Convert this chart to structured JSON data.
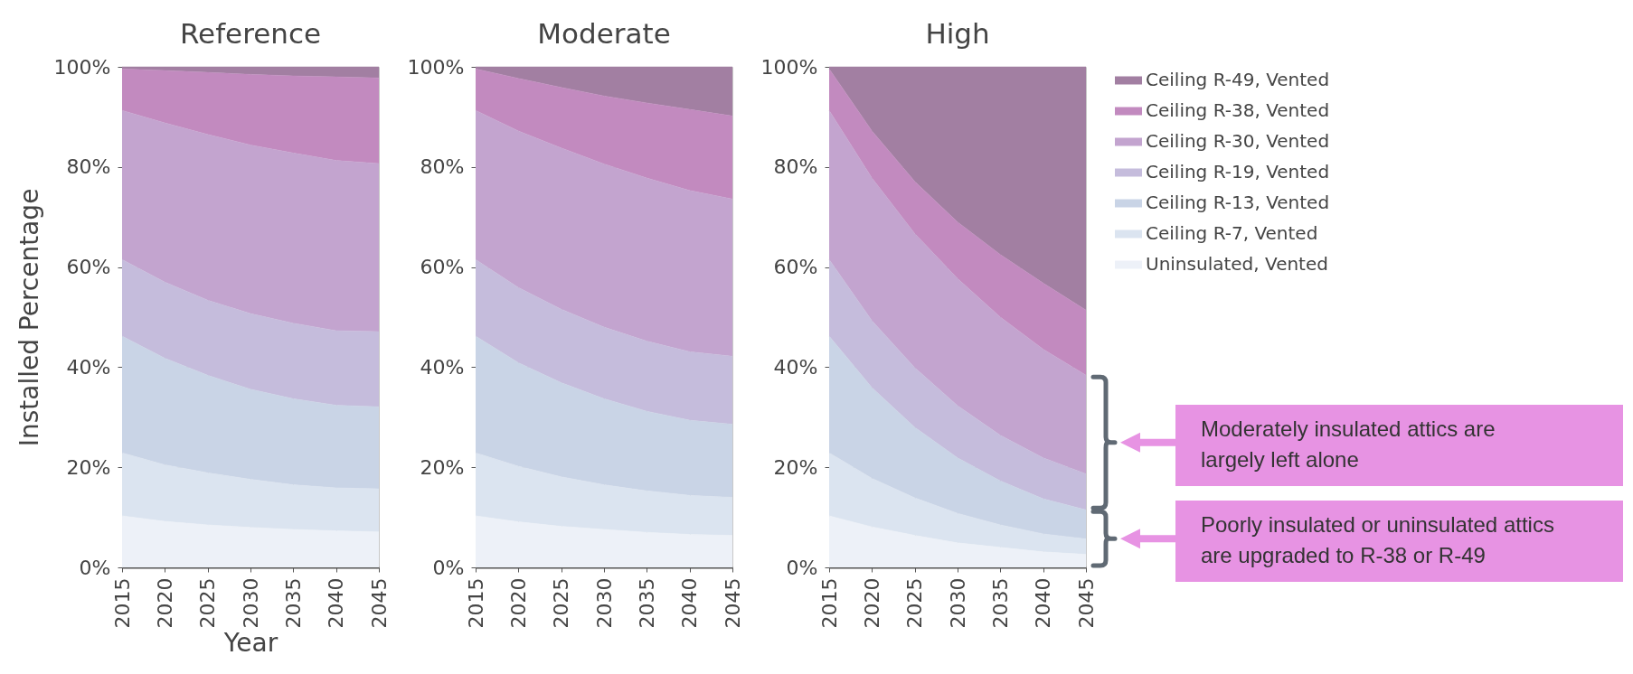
{
  "chart_data": [
    {
      "type": "area",
      "title": "Reference",
      "xlabel": "Year",
      "ylabel": "Installed Percentage",
      "stacked": true,
      "grid": true,
      "legend": false,
      "x": [
        2015,
        2020,
        2025,
        2030,
        2035,
        2040,
        2045
      ],
      "xlim": [
        2015,
        2045
      ],
      "xticks": [
        2015,
        2020,
        2025,
        2030,
        2035,
        2040,
        2045
      ],
      "ylim": [
        0,
        100
      ],
      "yticks": [
        {
          "value": 0,
          "label": "0%"
        },
        {
          "value": 20,
          "label": "20%"
        },
        {
          "value": 40,
          "label": "40%"
        },
        {
          "value": 60,
          "label": "60%"
        },
        {
          "value": 80,
          "label": "80%"
        },
        {
          "value": 100,
          "label": "100%"
        }
      ],
      "series": [
        {
          "color": "#edf1f8",
          "values": [
            10.3,
            9.2,
            8.5,
            8.0,
            7.6,
            7.3,
            7.1
          ]
        },
        {
          "color": "#dbe4f0",
          "values": [
            12.6,
            11.3,
            10.4,
            9.6,
            8.9,
            8.6,
            8.6
          ]
        },
        {
          "color": "#c9d4e6",
          "values": [
            23.3,
            21.3,
            19.5,
            18.0,
            17.2,
            16.5,
            16.4
          ]
        },
        {
          "color": "#c5bcdc",
          "values": [
            15.3,
            15.2,
            15.0,
            15.1,
            15.1,
            14.9,
            15.0
          ]
        },
        {
          "color": "#c3a4cf",
          "values": [
            29.8,
            31.8,
            33.1,
            33.7,
            34.0,
            34.0,
            33.6
          ]
        },
        {
          "color": "#c28abf",
          "values": [
            8.3,
            10.5,
            12.4,
            14.1,
            15.4,
            16.7,
            17.1
          ]
        },
        {
          "color": "#a27fa2",
          "values": [
            0.4,
            0.7,
            1.1,
            1.5,
            1.8,
            2.0,
            2.2
          ]
        }
      ]
    },
    {
      "type": "area",
      "title": "Moderate",
      "stacked": true,
      "grid": true,
      "legend": false,
      "x": [
        2015,
        2020,
        2025,
        2030,
        2035,
        2040,
        2045
      ],
      "xlim": [
        2015,
        2045
      ],
      "xticks": [
        2015,
        2020,
        2025,
        2030,
        2035,
        2040,
        2045
      ],
      "ylim": [
        0,
        100
      ],
      "yticks": [
        {
          "value": 0,
          "label": "0%"
        },
        {
          "value": 20,
          "label": "20%"
        },
        {
          "value": 40,
          "label": "40%"
        },
        {
          "value": 60,
          "label": "60%"
        },
        {
          "value": 80,
          "label": "80%"
        },
        {
          "value": 100,
          "label": "100%"
        }
      ],
      "series": [
        {
          "color": "#edf1f8",
          "values": [
            10.3,
            9.1,
            8.2,
            7.6,
            7.0,
            6.6,
            6.4
          ]
        },
        {
          "color": "#dbe4f0",
          "values": [
            12.6,
            11.1,
            9.9,
            8.9,
            8.3,
            7.8,
            7.6
          ]
        },
        {
          "color": "#c9d4e6",
          "values": [
            23.3,
            20.7,
            18.8,
            17.2,
            15.9,
            15.0,
            14.6
          ]
        },
        {
          "color": "#c5bcdc",
          "values": [
            15.3,
            15.0,
            14.7,
            14.3,
            14.0,
            13.7,
            13.6
          ]
        },
        {
          "color": "#c3a4cf",
          "values": [
            29.8,
            31.3,
            32.2,
            32.6,
            32.6,
            32.2,
            31.4
          ]
        },
        {
          "color": "#c28abf",
          "values": [
            8.3,
            10.5,
            12.1,
            13.6,
            15.0,
            16.2,
            16.6
          ]
        },
        {
          "color": "#a27fa2",
          "values": [
            0.4,
            2.3,
            4.1,
            5.8,
            7.2,
            8.5,
            9.8
          ]
        }
      ]
    },
    {
      "type": "area",
      "title": "High",
      "stacked": true,
      "grid": true,
      "legend": "right",
      "x": [
        2015,
        2020,
        2025,
        2030,
        2035,
        2040,
        2045
      ],
      "xlim": [
        2015,
        2045
      ],
      "xticks": [
        2015,
        2020,
        2025,
        2030,
        2035,
        2040,
        2045
      ],
      "ylim": [
        0,
        100
      ],
      "yticks": [
        {
          "value": 0,
          "label": "0%"
        },
        {
          "value": 20,
          "label": "20%"
        },
        {
          "value": 40,
          "label": "40%"
        },
        {
          "value": 60,
          "label": "60%"
        },
        {
          "value": 80,
          "label": "80%"
        },
        {
          "value": 100,
          "label": "100%"
        }
      ],
      "annotations": [
        "Moderately insulated attics are largely left alone",
        "Poorly insulated or uninsulated attics are upgraded to R-38 or R-49"
      ],
      "series": [
        {
          "name": "Uninsulated, Vented",
          "color": "#edf1f8",
          "values": [
            10.3,
            8.1,
            6.4,
            4.9,
            4.0,
            3.1,
            2.6
          ]
        },
        {
          "name": "Ceiling R-7, Vented",
          "color": "#dbe4f0",
          "values": [
            12.6,
            9.7,
            7.5,
            5.9,
            4.5,
            3.6,
            3.1
          ]
        },
        {
          "name": "Ceiling R-13, Vented",
          "color": "#c9d4e6",
          "values": [
            23.3,
            18.1,
            14.1,
            11.1,
            8.8,
            7.0,
            5.8
          ]
        },
        {
          "name": "Ceiling R-19, Vented",
          "color": "#c5bcdc",
          "values": [
            15.3,
            13.4,
            11.9,
            10.4,
            9.1,
            8.2,
            7.2
          ]
        },
        {
          "name": "Ceiling R-30, Vented",
          "color": "#c3a4cf",
          "values": [
            29.8,
            28.5,
            26.8,
            25.4,
            23.6,
            21.7,
            19.7
          ]
        },
        {
          "name": "Ceiling R-38, Vented",
          "color": "#c28abf",
          "values": [
            8.3,
            9.4,
            10.4,
            11.3,
            12.5,
            13.2,
            13.0
          ]
        },
        {
          "name": "Ceiling R-49, Vented",
          "color": "#a27fa2",
          "values": [
            0.4,
            12.8,
            22.9,
            31.0,
            37.5,
            43.2,
            48.6
          ]
        }
      ]
    }
  ]
}
